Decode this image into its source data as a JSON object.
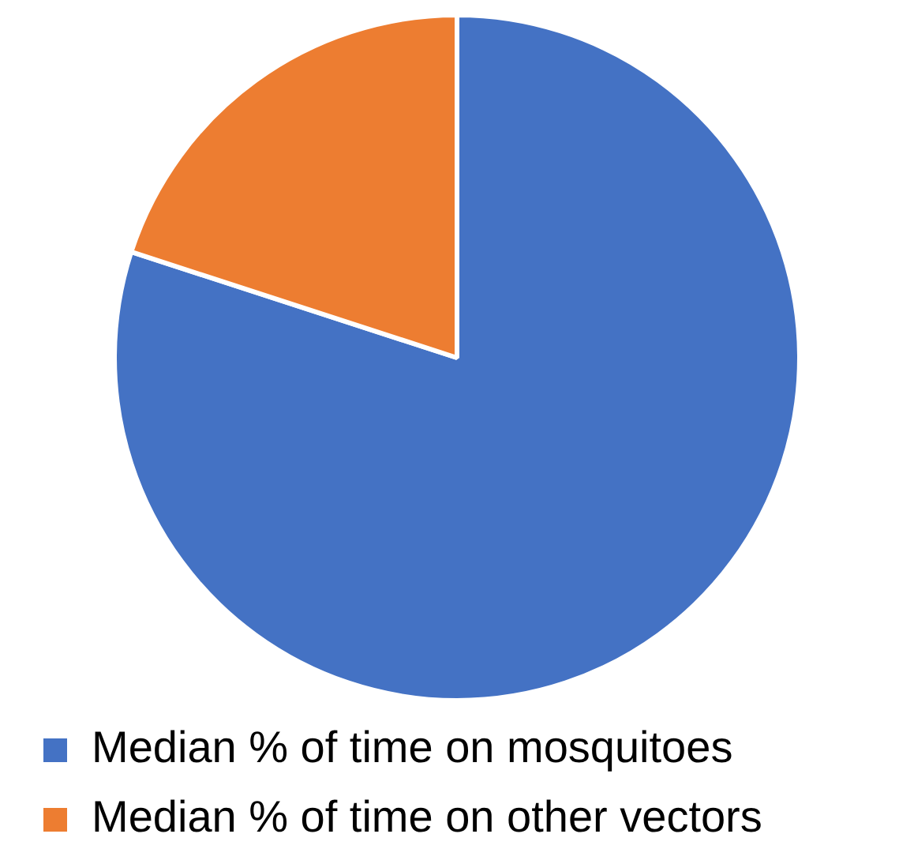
{
  "chart_data": {
    "type": "pie",
    "categories": [
      "Median % of time on mosquitoes",
      "Median % of time on other vectors"
    ],
    "values": [
      80,
      20
    ],
    "colors": [
      "#4472c4",
      "#ed7d31"
    ],
    "legend": "bottom"
  }
}
